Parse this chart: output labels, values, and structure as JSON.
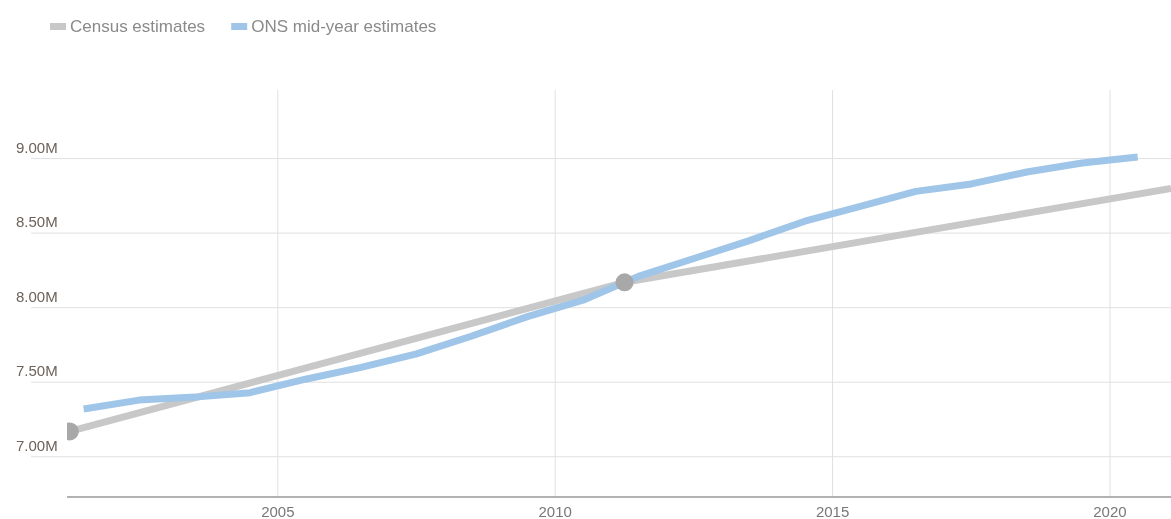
{
  "chart_data": {
    "type": "line",
    "xlim": [
      2001.2,
      2021.1
    ],
    "xticks": [
      2005,
      2010,
      2015,
      2020
    ],
    "ylim": [
      6.73,
      9.46
    ],
    "yticks": [
      {
        "value": 7,
        "label": "7.00M"
      },
      {
        "value": 7.5,
        "label": "7.50M"
      },
      {
        "value": 8,
        "label": "8.00M"
      },
      {
        "value": 8.5,
        "label": "8.50M"
      },
      {
        "value": 9,
        "label": "9.00M"
      }
    ],
    "grid": true,
    "legend": "top left",
    "series": [
      {
        "name": "Census estimates",
        "color": "#c8c8c8",
        "marker": "circle",
        "x": [
          2001.25,
          2011.25
        ],
        "values": [
          7.17,
          8.17
        ]
      },
      {
        "color": "#c8c8c8",
        "marker": "none",
        "x": [
          2011.25,
          2021.1
        ],
        "values": [
          8.17,
          8.8
        ]
      },
      {
        "name": "ONS mid-year estimates",
        "color": "#9fc5e8",
        "marker": "none",
        "x": [
          2001.5,
          2002.5,
          2003.5,
          2004.5,
          2005.5,
          2006.5,
          2007.5,
          2008.5,
          2009.5,
          2010.5,
          2011.5,
          2012.5,
          2013.5,
          2014.5,
          2015.5,
          2016.5,
          2017.5,
          2018.5,
          2019.5,
          2020.5
        ],
        "values": [
          7.32,
          7.38,
          7.4,
          7.43,
          7.52,
          7.6,
          7.69,
          7.81,
          7.94,
          8.05,
          8.21,
          8.33,
          8.45,
          8.58,
          8.68,
          8.78,
          8.83,
          8.91,
          8.97,
          9.01
        ]
      }
    ]
  }
}
